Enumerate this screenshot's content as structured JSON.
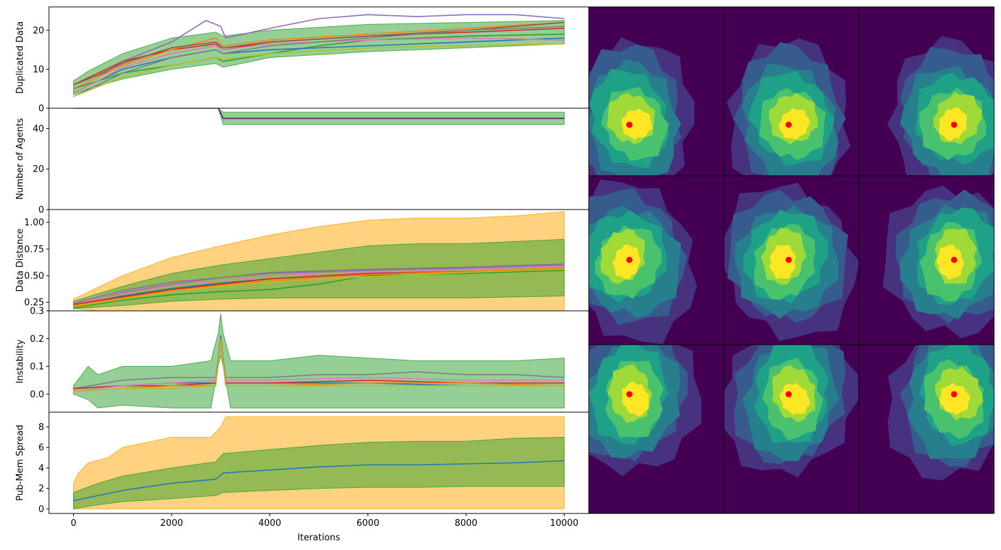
{
  "chart_data": [
    {
      "type": "line",
      "ylabel": "Duplicated Data",
      "xlim": [
        -500,
        10500
      ],
      "ylim": [
        0,
        26
      ],
      "yticks": [
        0,
        10,
        20
      ],
      "band": {
        "color": "#2ca02c",
        "x": [
          0,
          300,
          1000,
          2000,
          2900,
          3050,
          4000,
          6000,
          8000,
          10000
        ],
        "lower": [
          3.5,
          5,
          7.5,
          10,
          11.5,
          10.5,
          13,
          14.5,
          15.5,
          16.5
        ],
        "upper": [
          7,
          9.5,
          14,
          18,
          19.5,
          18.5,
          20,
          21.5,
          22,
          22.5
        ]
      },
      "series": [
        {
          "color": "#9467bd",
          "x": [
            0,
            500,
            1000,
            2000,
            2700,
            3000,
            3100,
            4000,
            5000,
            6000,
            7000,
            8000,
            9000,
            10000
          ],
          "y": [
            5,
            8,
            12,
            17,
            22.5,
            21,
            18,
            20.5,
            23,
            24,
            23.5,
            24,
            24,
            23
          ]
        },
        {
          "color": "#2ca02c",
          "x": [
            0,
            500,
            1000,
            2000,
            2900,
            3050,
            4000,
            5000,
            6000,
            8000,
            10000
          ],
          "y": [
            5,
            7,
            9,
            11,
            13,
            12,
            14,
            16,
            17.5,
            18.5,
            19
          ]
        },
        {
          "color": "#d62728",
          "x": [
            0,
            500,
            1000,
            2000,
            2900,
            3050,
            4000,
            6000,
            8000,
            10000
          ],
          "y": [
            6,
            9,
            12,
            15,
            16.5,
            15,
            17,
            18.5,
            19.5,
            20.5
          ]
        },
        {
          "color": "#ff7f0e",
          "x": [
            0,
            500,
            1000,
            2000,
            2900,
            3050,
            4000,
            6000,
            8000,
            10000
          ],
          "y": [
            5,
            8,
            11,
            15,
            18,
            16,
            17.5,
            19,
            20.5,
            22
          ]
        },
        {
          "color": "#8c564b",
          "x": [
            0,
            500,
            1000,
            2000,
            2900,
            3050,
            4000,
            6000,
            8000,
            10000
          ],
          "y": [
            6,
            8.5,
            11.5,
            15.5,
            17,
            15.5,
            17,
            18.5,
            20,
            22
          ]
        },
        {
          "color": "#1f77b4",
          "x": [
            0,
            500,
            1000,
            2000,
            2900,
            3050,
            4000,
            6000,
            8000,
            10000
          ],
          "y": [
            4,
            7,
            10,
            13,
            15,
            14,
            15,
            16,
            17,
            18
          ]
        },
        {
          "color": "#e377c2",
          "x": [
            0,
            500,
            1000,
            2000,
            2900,
            3050,
            4000,
            6000,
            8000,
            10000
          ],
          "y": [
            4,
            7,
            10.5,
            14,
            16,
            15,
            16.5,
            17.5,
            18,
            17.5
          ]
        },
        {
          "color": "#7f7f7f",
          "x": [
            0,
            500,
            1000,
            2000,
            2900,
            3050,
            4000,
            6000,
            8000,
            10000
          ],
          "y": [
            3,
            6,
            9,
            13,
            15,
            14,
            16,
            18,
            20,
            21
          ]
        },
        {
          "color": "#bcbd22",
          "x": [
            0,
            500,
            1000,
            2000,
            2900,
            3050,
            4000,
            6000,
            8000,
            10000
          ],
          "y": [
            3,
            5.5,
            8,
            11,
            13,
            12.5,
            14,
            15.5,
            16,
            16.5
          ]
        }
      ]
    },
    {
      "type": "line",
      "ylabel": "Number of Agents",
      "xlim": [
        -500,
        10500
      ],
      "ylim": [
        0,
        50
      ],
      "yticks": [
        0,
        20,
        40
      ],
      "band": {
        "color": "#2ca02c",
        "x": [
          0,
          2950,
          3050,
          10000
        ],
        "lower": [
          50,
          50,
          42,
          42
        ],
        "upper": [
          50,
          50,
          48,
          48
        ]
      },
      "series": [
        {
          "color": "#5a1a6e",
          "x": [
            0,
            2950,
            3050,
            10000
          ],
          "y": [
            50,
            50,
            45,
            45
          ]
        }
      ]
    },
    {
      "type": "line",
      "ylabel": "Data Distance",
      "xlim": [
        -500,
        10500
      ],
      "ylim": [
        0.17,
        1.12
      ],
      "yticks": [
        0.25,
        0.5,
        0.75,
        1.0
      ],
      "ytick_labels": [
        "0.25",
        "0.50",
        "0.75",
        "1.00"
      ],
      "bands": [
        {
          "color": "#ffa500",
          "x": [
            0,
            1000,
            2000,
            3000,
            4000,
            5000,
            6000,
            7000,
            8000,
            9000,
            10000
          ],
          "lower": [
            0.19,
            0.15,
            0.14,
            0.13,
            0.13,
            0.13,
            0.12,
            0.12,
            0.12,
            0.12,
            0.12
          ],
          "upper": [
            0.28,
            0.5,
            0.67,
            0.78,
            0.88,
            0.96,
            1.02,
            1.04,
            1.04,
            1.06,
            1.1
          ]
        },
        {
          "color": "#2ca02c",
          "x": [
            0,
            1000,
            2000,
            3000,
            4000,
            5000,
            6000,
            7000,
            8000,
            9000,
            10000
          ],
          "lower": [
            0.19,
            0.22,
            0.26,
            0.28,
            0.29,
            0.29,
            0.29,
            0.29,
            0.29,
            0.3,
            0.31
          ],
          "upper": [
            0.26,
            0.4,
            0.52,
            0.6,
            0.66,
            0.72,
            0.78,
            0.8,
            0.8,
            0.82,
            0.84
          ]
        }
      ],
      "series": [
        {
          "color": "#9467bd",
          "x": [
            0,
            1000,
            2000,
            3000,
            4000,
            6000,
            8000,
            10000
          ],
          "y": [
            0.24,
            0.36,
            0.44,
            0.48,
            0.52,
            0.55,
            0.57,
            0.6
          ]
        },
        {
          "color": "#7f7f7f",
          "x": [
            0,
            1000,
            2000,
            3000,
            4000,
            6000,
            8000,
            10000
          ],
          "y": [
            0.22,
            0.34,
            0.42,
            0.48,
            0.53,
            0.56,
            0.58,
            0.61
          ]
        },
        {
          "color": "#e377c2",
          "x": [
            0,
            1000,
            2000,
            3000,
            4000,
            6000,
            8000,
            10000
          ],
          "y": [
            0.23,
            0.33,
            0.41,
            0.45,
            0.5,
            0.53,
            0.56,
            0.59
          ]
        },
        {
          "color": "#1f77b4",
          "x": [
            0,
            1000,
            2000,
            3000,
            4000,
            6000,
            8000,
            10000
          ],
          "y": [
            0.22,
            0.31,
            0.38,
            0.43,
            0.47,
            0.52,
            0.54,
            0.56
          ]
        },
        {
          "color": "#d62728",
          "x": [
            0,
            1000,
            2000,
            3000,
            4000,
            6000,
            8000,
            10000
          ],
          "y": [
            0.23,
            0.3,
            0.37,
            0.42,
            0.47,
            0.52,
            0.54,
            0.55
          ]
        },
        {
          "color": "#ff7f0e",
          "x": [
            0,
            1000,
            2000,
            3000,
            4000,
            6000,
            8000,
            10000
          ],
          "y": [
            0.22,
            0.29,
            0.36,
            0.41,
            0.45,
            0.51,
            0.54,
            0.57
          ]
        },
        {
          "color": "#2ca02c",
          "x": [
            0,
            1000,
            2000,
            3000,
            4000,
            5000,
            6000,
            8000,
            10000
          ],
          "y": [
            0.2,
            0.27,
            0.32,
            0.35,
            0.37,
            0.42,
            0.5,
            0.52,
            0.55
          ]
        },
        {
          "color": "#bcbd22",
          "x": [
            0,
            1000,
            2000,
            3000,
            4000,
            6000,
            8000,
            10000
          ],
          "y": [
            0.21,
            0.28,
            0.35,
            0.4,
            0.44,
            0.49,
            0.53,
            0.56
          ]
        }
      ]
    },
    {
      "type": "line",
      "ylabel": "Instability",
      "xlim": [
        -500,
        10500
      ],
      "ylim": [
        -0.065,
        0.3
      ],
      "yticks": [
        0.0,
        0.1,
        0.2,
        0.3
      ],
      "ytick_labels": [
        "0.0",
        "0.1",
        "0.2",
        "0.3"
      ],
      "band": {
        "color": "#2ca02c",
        "x": [
          0,
          300,
          500,
          1000,
          2000,
          2800,
          2950,
          3000,
          3050,
          3200,
          4000,
          5000,
          6000,
          7000,
          8000,
          9000,
          10000
        ],
        "lower": [
          0.0,
          -0.02,
          -0.05,
          -0.04,
          -0.05,
          -0.05,
          0.1,
          0.14,
          0.1,
          -0.05,
          -0.05,
          -0.05,
          -0.05,
          -0.05,
          -0.05,
          -0.05,
          -0.05
        ],
        "upper": [
          0.03,
          0.1,
          0.07,
          0.1,
          0.1,
          0.12,
          0.22,
          0.29,
          0.22,
          0.12,
          0.12,
          0.14,
          0.13,
          0.12,
          0.12,
          0.12,
          0.13
        ]
      },
      "series": [
        {
          "color": "#7f7f7f",
          "x": [
            0,
            1000,
            2000,
            2900,
            3000,
            3100,
            4000,
            5000,
            6000,
            7000,
            8000,
            9000,
            10000
          ],
          "y": [
            0.02,
            0.05,
            0.06,
            0.06,
            0.19,
            0.06,
            0.06,
            0.07,
            0.07,
            0.08,
            0.07,
            0.07,
            0.06
          ]
        },
        {
          "color": "#1f77b4",
          "x": [
            0,
            1000,
            2000,
            2900,
            3000,
            3100,
            4000,
            6000,
            8000,
            10000
          ],
          "y": [
            0.02,
            0.03,
            0.04,
            0.04,
            0.21,
            0.04,
            0.04,
            0.04,
            0.03,
            0.03
          ]
        },
        {
          "color": "#d62728",
          "x": [
            0,
            1000,
            2000,
            2900,
            3000,
            3100,
            4000,
            6000,
            8000,
            10000
          ],
          "y": [
            0.02,
            0.03,
            0.03,
            0.04,
            0.18,
            0.04,
            0.04,
            0.05,
            0.04,
            0.04
          ]
        },
        {
          "color": "#e377c2",
          "x": [
            0,
            1000,
            2000,
            2900,
            3000,
            3100,
            4000,
            6000,
            8000,
            10000
          ],
          "y": [
            0.01,
            0.03,
            0.04,
            0.05,
            0.17,
            0.05,
            0.05,
            0.06,
            0.05,
            0.05
          ]
        },
        {
          "color": "#ff7f0e",
          "x": [
            0,
            1000,
            2000,
            2900,
            3000,
            3100,
            4000,
            6000,
            8000,
            10000
          ],
          "y": [
            0.01,
            0.02,
            0.03,
            0.03,
            0.2,
            0.03,
            0.03,
            0.04,
            0.04,
            0.03
          ]
        },
        {
          "color": "#bcbd22",
          "x": [
            0,
            1000,
            2000,
            2900,
            3000,
            3100,
            4000,
            6000,
            8000,
            10000
          ],
          "y": [
            0.01,
            0.02,
            0.02,
            0.03,
            0.19,
            0.03,
            0.03,
            0.03,
            0.03,
            0.03
          ]
        }
      ]
    },
    {
      "type": "line",
      "ylabel": "Pub-Mem Spread",
      "xlabel": "Iterations",
      "xlim": [
        -500,
        10500
      ],
      "ylim": [
        -0.45,
        9.45
      ],
      "yticks": [
        0,
        2,
        4,
        6,
        8
      ],
      "xticks": [
        0,
        2000,
        4000,
        6000,
        8000,
        10000
      ],
      "bands": [
        {
          "color": "#ffa500",
          "x": [
            0,
            100,
            300,
            700,
            1000,
            1500,
            2000,
            2800,
            3000,
            3100,
            10000
          ],
          "lower": [
            0,
            0,
            0,
            0,
            0,
            0,
            0,
            0,
            0,
            0,
            0
          ],
          "upper": [
            2.5,
            3.5,
            4.5,
            5.0,
            6.0,
            6.5,
            7.0,
            7.0,
            8.0,
            9.0,
            9.0
          ]
        },
        {
          "color": "#2ca02c",
          "x": [
            0,
            500,
            1000,
            2000,
            2900,
            3050,
            4000,
            5000,
            6000,
            7000,
            8000,
            9000,
            10000
          ],
          "lower": [
            0.0,
            0.4,
            0.7,
            1.0,
            1.3,
            1.6,
            1.8,
            2.0,
            2.1,
            2.1,
            2.2,
            2.2,
            2.2
          ],
          "upper": [
            1.6,
            2.5,
            3.2,
            4.0,
            4.6,
            5.4,
            5.8,
            6.2,
            6.5,
            6.6,
            6.6,
            6.9,
            7.0
          ]
        }
      ],
      "series": [
        {
          "color": "#1f77b4",
          "x": [
            0,
            500,
            1000,
            2000,
            2900,
            3050,
            4000,
            5000,
            6000,
            7000,
            8000,
            9000,
            10000
          ],
          "y": [
            0.8,
            1.3,
            1.8,
            2.5,
            2.9,
            3.5,
            3.8,
            4.1,
            4.3,
            4.3,
            4.4,
            4.5,
            4.7
          ]
        }
      ]
    }
  ],
  "heatmap_grid": {
    "rows": 3,
    "cols": 3,
    "background": "#440154",
    "marker_color": "#ff0000",
    "colors": [
      "#46327e",
      "#365c8d",
      "#277f8e",
      "#1fa187",
      "#4ac16d",
      "#a0da39",
      "#fde725"
    ]
  }
}
